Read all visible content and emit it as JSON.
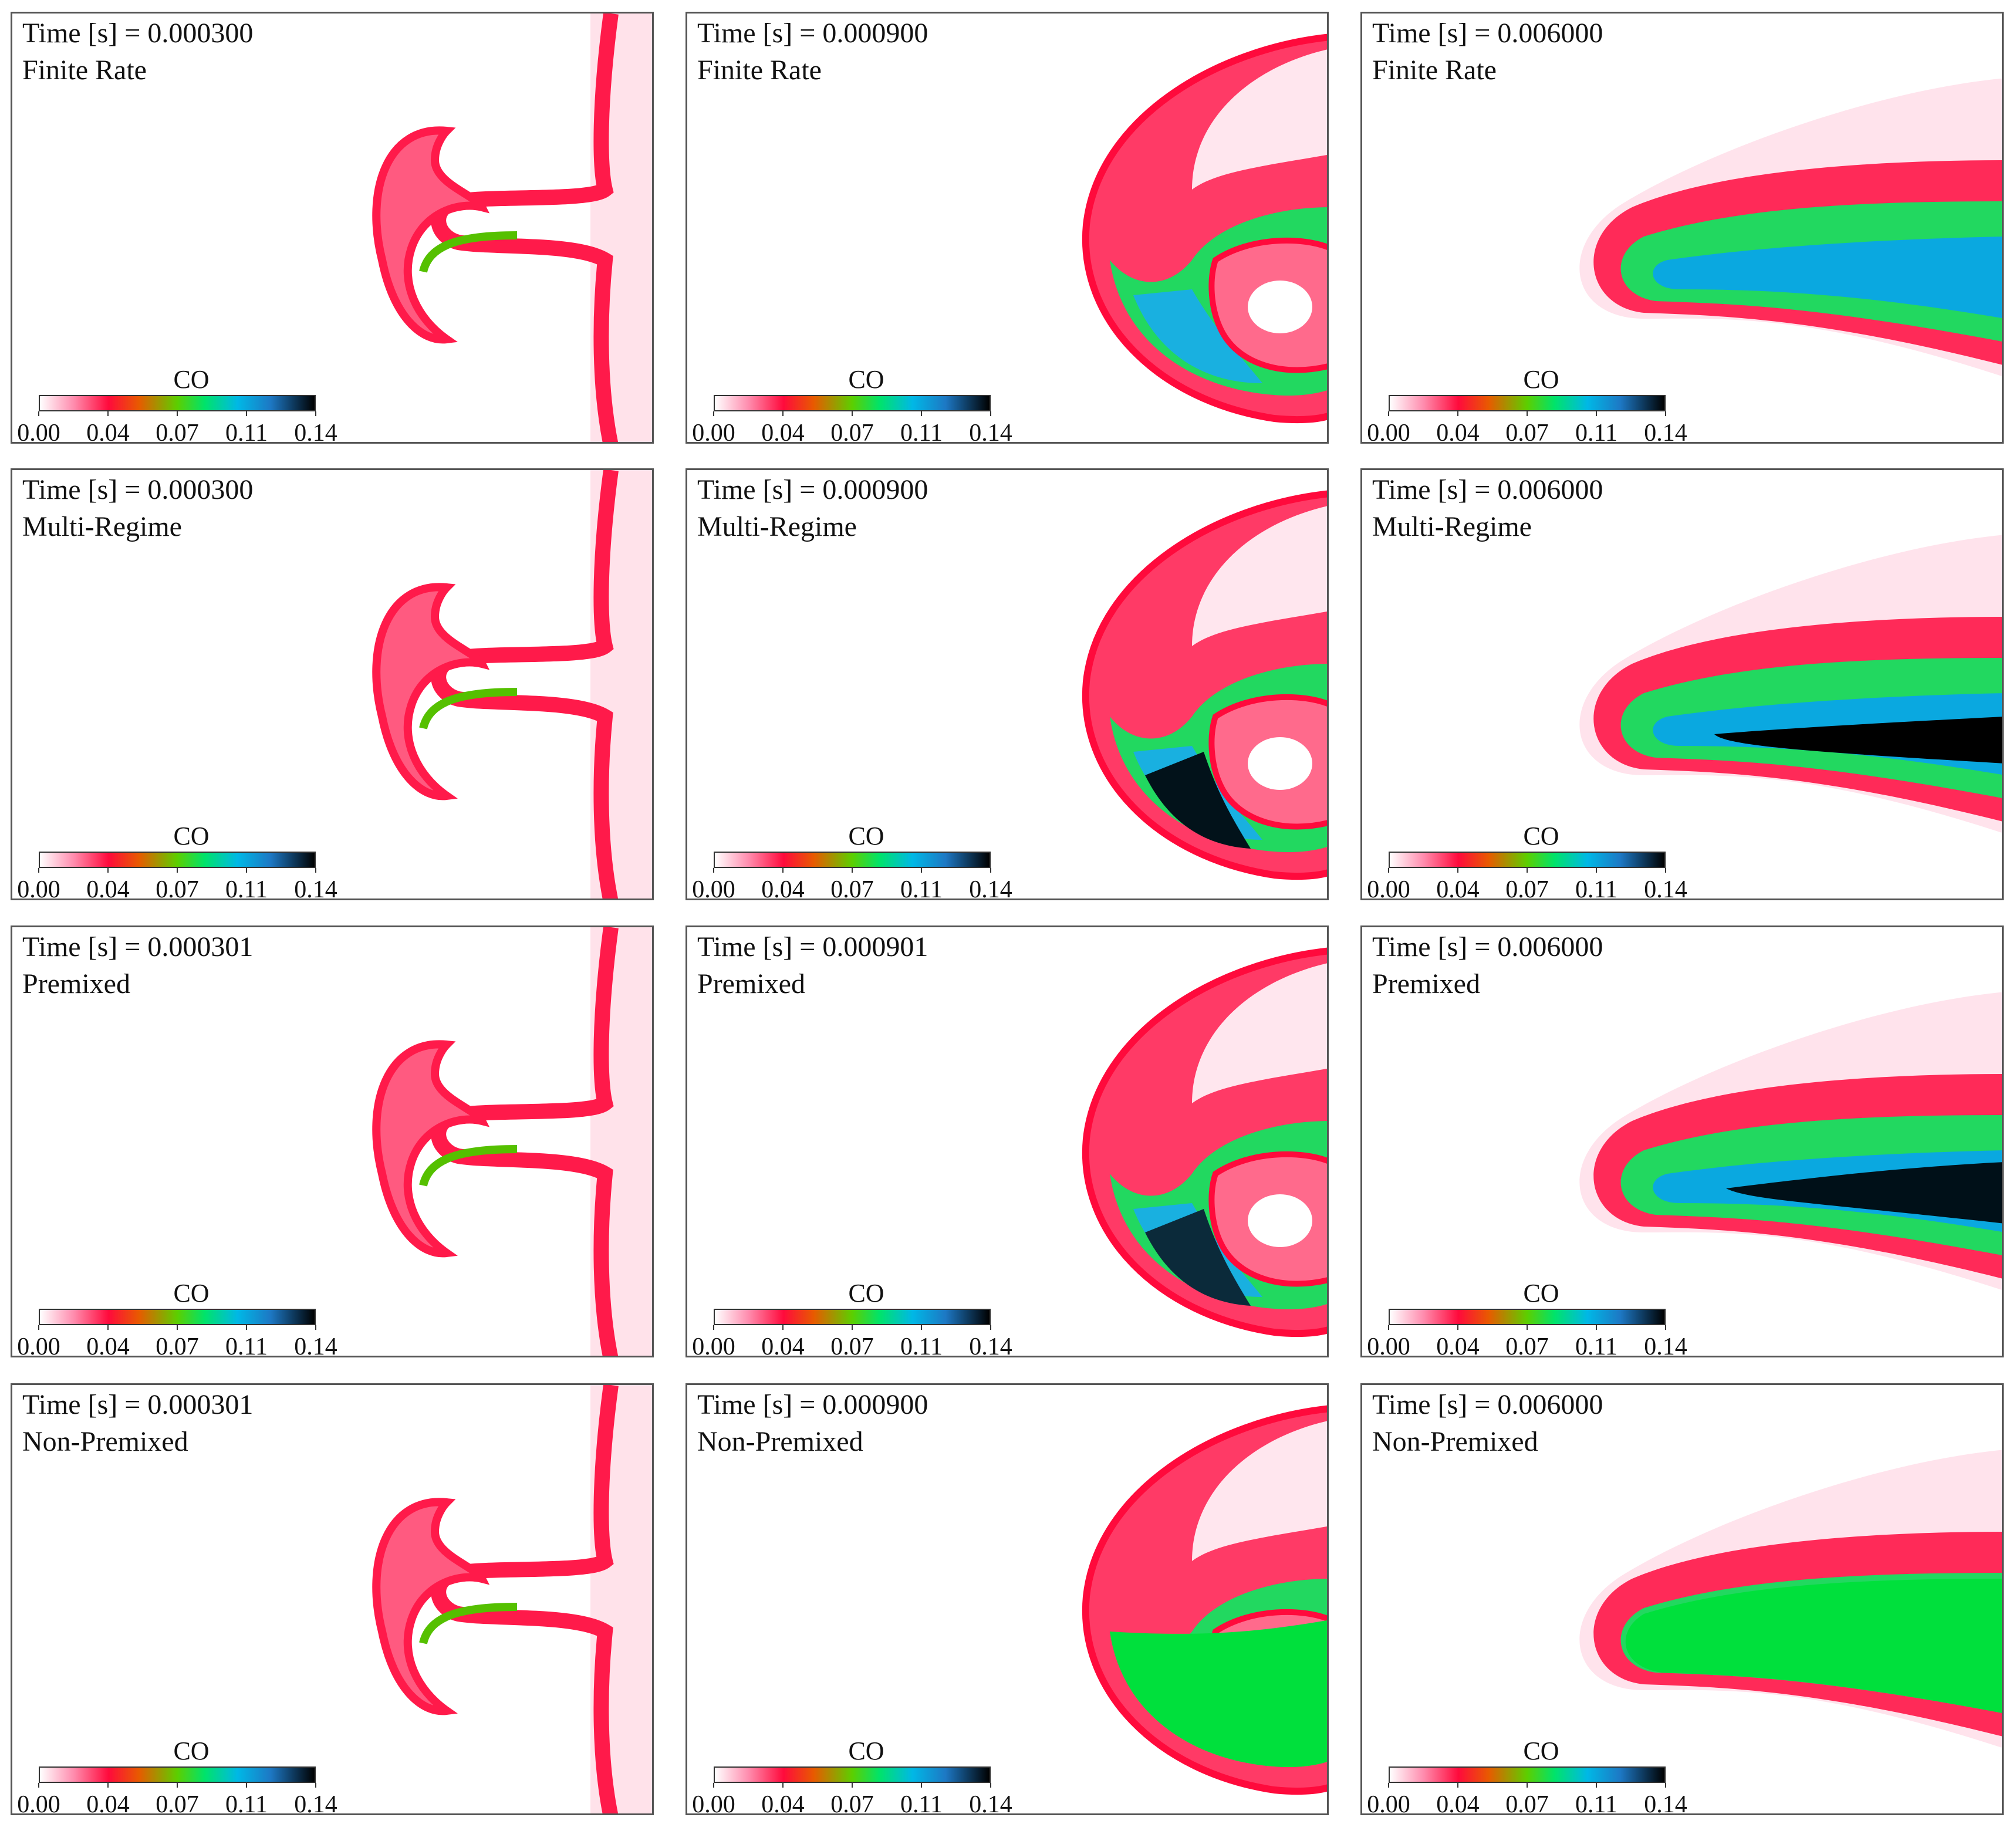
{
  "colorbar": {
    "title": "CO",
    "ticks": [
      "0.00",
      "0.04",
      "0.07",
      "0.11",
      "0.14"
    ],
    "colors": [
      "#ffffff",
      "#ff0a3c",
      "#5ccf00",
      "#00b8e6",
      "#000000"
    ]
  },
  "panels": [
    {
      "time": "Time [s] = 0.000300",
      "model": "Finite Rate",
      "stage": "early"
    },
    {
      "time": "Time [s] = 0.000900",
      "model": "Finite Rate",
      "stage": "mid"
    },
    {
      "time": "Time [s] = 0.006000",
      "model": "Finite Rate",
      "stage": "late"
    },
    {
      "time": "Time [s] = 0.000300",
      "model": "Multi-Regime",
      "stage": "early"
    },
    {
      "time": "Time [s] = 0.000900",
      "model": "Multi-Regime",
      "stage": "mid"
    },
    {
      "time": "Time [s] = 0.006000",
      "model": "Multi-Regime",
      "stage": "late"
    },
    {
      "time": "Time [s] = 0.000301",
      "model": "Premixed",
      "stage": "early"
    },
    {
      "time": "Time [s] = 0.000901",
      "model": "Premixed",
      "stage": "mid"
    },
    {
      "time": "Time [s] = 0.006000",
      "model": "Premixed",
      "stage": "late"
    },
    {
      "time": "Time [s] = 0.000301",
      "model": "Non-Premixed",
      "stage": "early"
    },
    {
      "time": "Time [s] = 0.000900",
      "model": "Non-Premixed",
      "stage": "mid"
    },
    {
      "time": "Time [s] = 0.006000",
      "model": "Non-Premixed",
      "stage": "late"
    }
  ]
}
